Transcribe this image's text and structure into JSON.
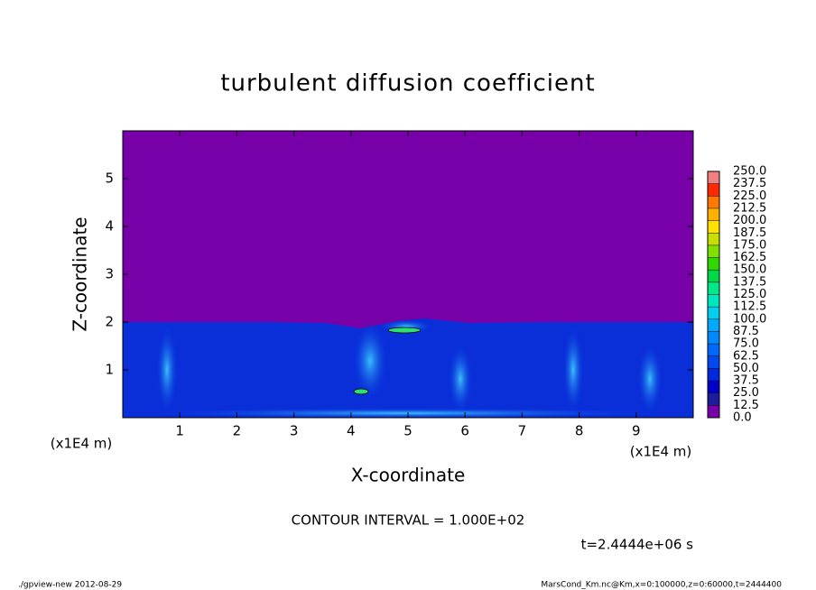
{
  "chart_data": {
    "type": "contour",
    "title": "turbulent diffusion coefficient",
    "x_label": "X-coordinate",
    "y_label": "Z-coordinate",
    "x_unit": "(x1E4 m)",
    "xlim": [
      0,
      10
    ],
    "xticks": [
      1,
      2,
      3,
      4,
      5,
      6,
      7,
      8,
      9
    ],
    "ylim": [
      0,
      6
    ],
    "yticks": [
      1,
      2,
      3,
      4,
      5
    ],
    "colorbar": {
      "lim": [
        0,
        250
      ],
      "ticks": [
        {
          "value": 0,
          "label": "0.0"
        },
        12.5,
        {
          "value": 25,
          "label": "25.0"
        },
        37.5,
        {
          "value": 50,
          "label": "50.0"
        },
        62.5,
        {
          "value": 75,
          "label": "75.0"
        },
        87.5,
        {
          "value": 100,
          "label": "100.0"
        },
        112.5,
        {
          "value": 125,
          "label": "125.0"
        },
        137.5,
        {
          "value": 150,
          "label": "150.0"
        },
        162.5,
        {
          "value": 175,
          "label": "175.0"
        },
        187.5,
        {
          "value": 200,
          "label": "200.0"
        },
        212.5,
        {
          "value": 225,
          "label": "225.0"
        },
        237.5,
        {
          "value": 250,
          "label": "250.0"
        }
      ],
      "colors": [
        "#7800a8",
        "#1c1c9c",
        "#0000c8",
        "#0028e0",
        "#0048f0",
        "#0068ff",
        "#0088ff",
        "#00aaff",
        "#00d0f0",
        "#00e8c0",
        "#00e888",
        "#00d848",
        "#30d800",
        "#80e000",
        "#c8e000",
        "#ffe000",
        "#ffb000",
        "#ff7800",
        "#ff2800",
        "#f08080"
      ]
    },
    "contour_interval": "CONTOUR INTERVAL = 1.000E+02",
    "time_label": "t=2.4444e+06 s",
    "footer_left": "./gpview-new  2012-08-29",
    "footer_right": "MarsCond_Km.nc@Km,x=0:100000,z=0:60000,t=2444400"
  }
}
